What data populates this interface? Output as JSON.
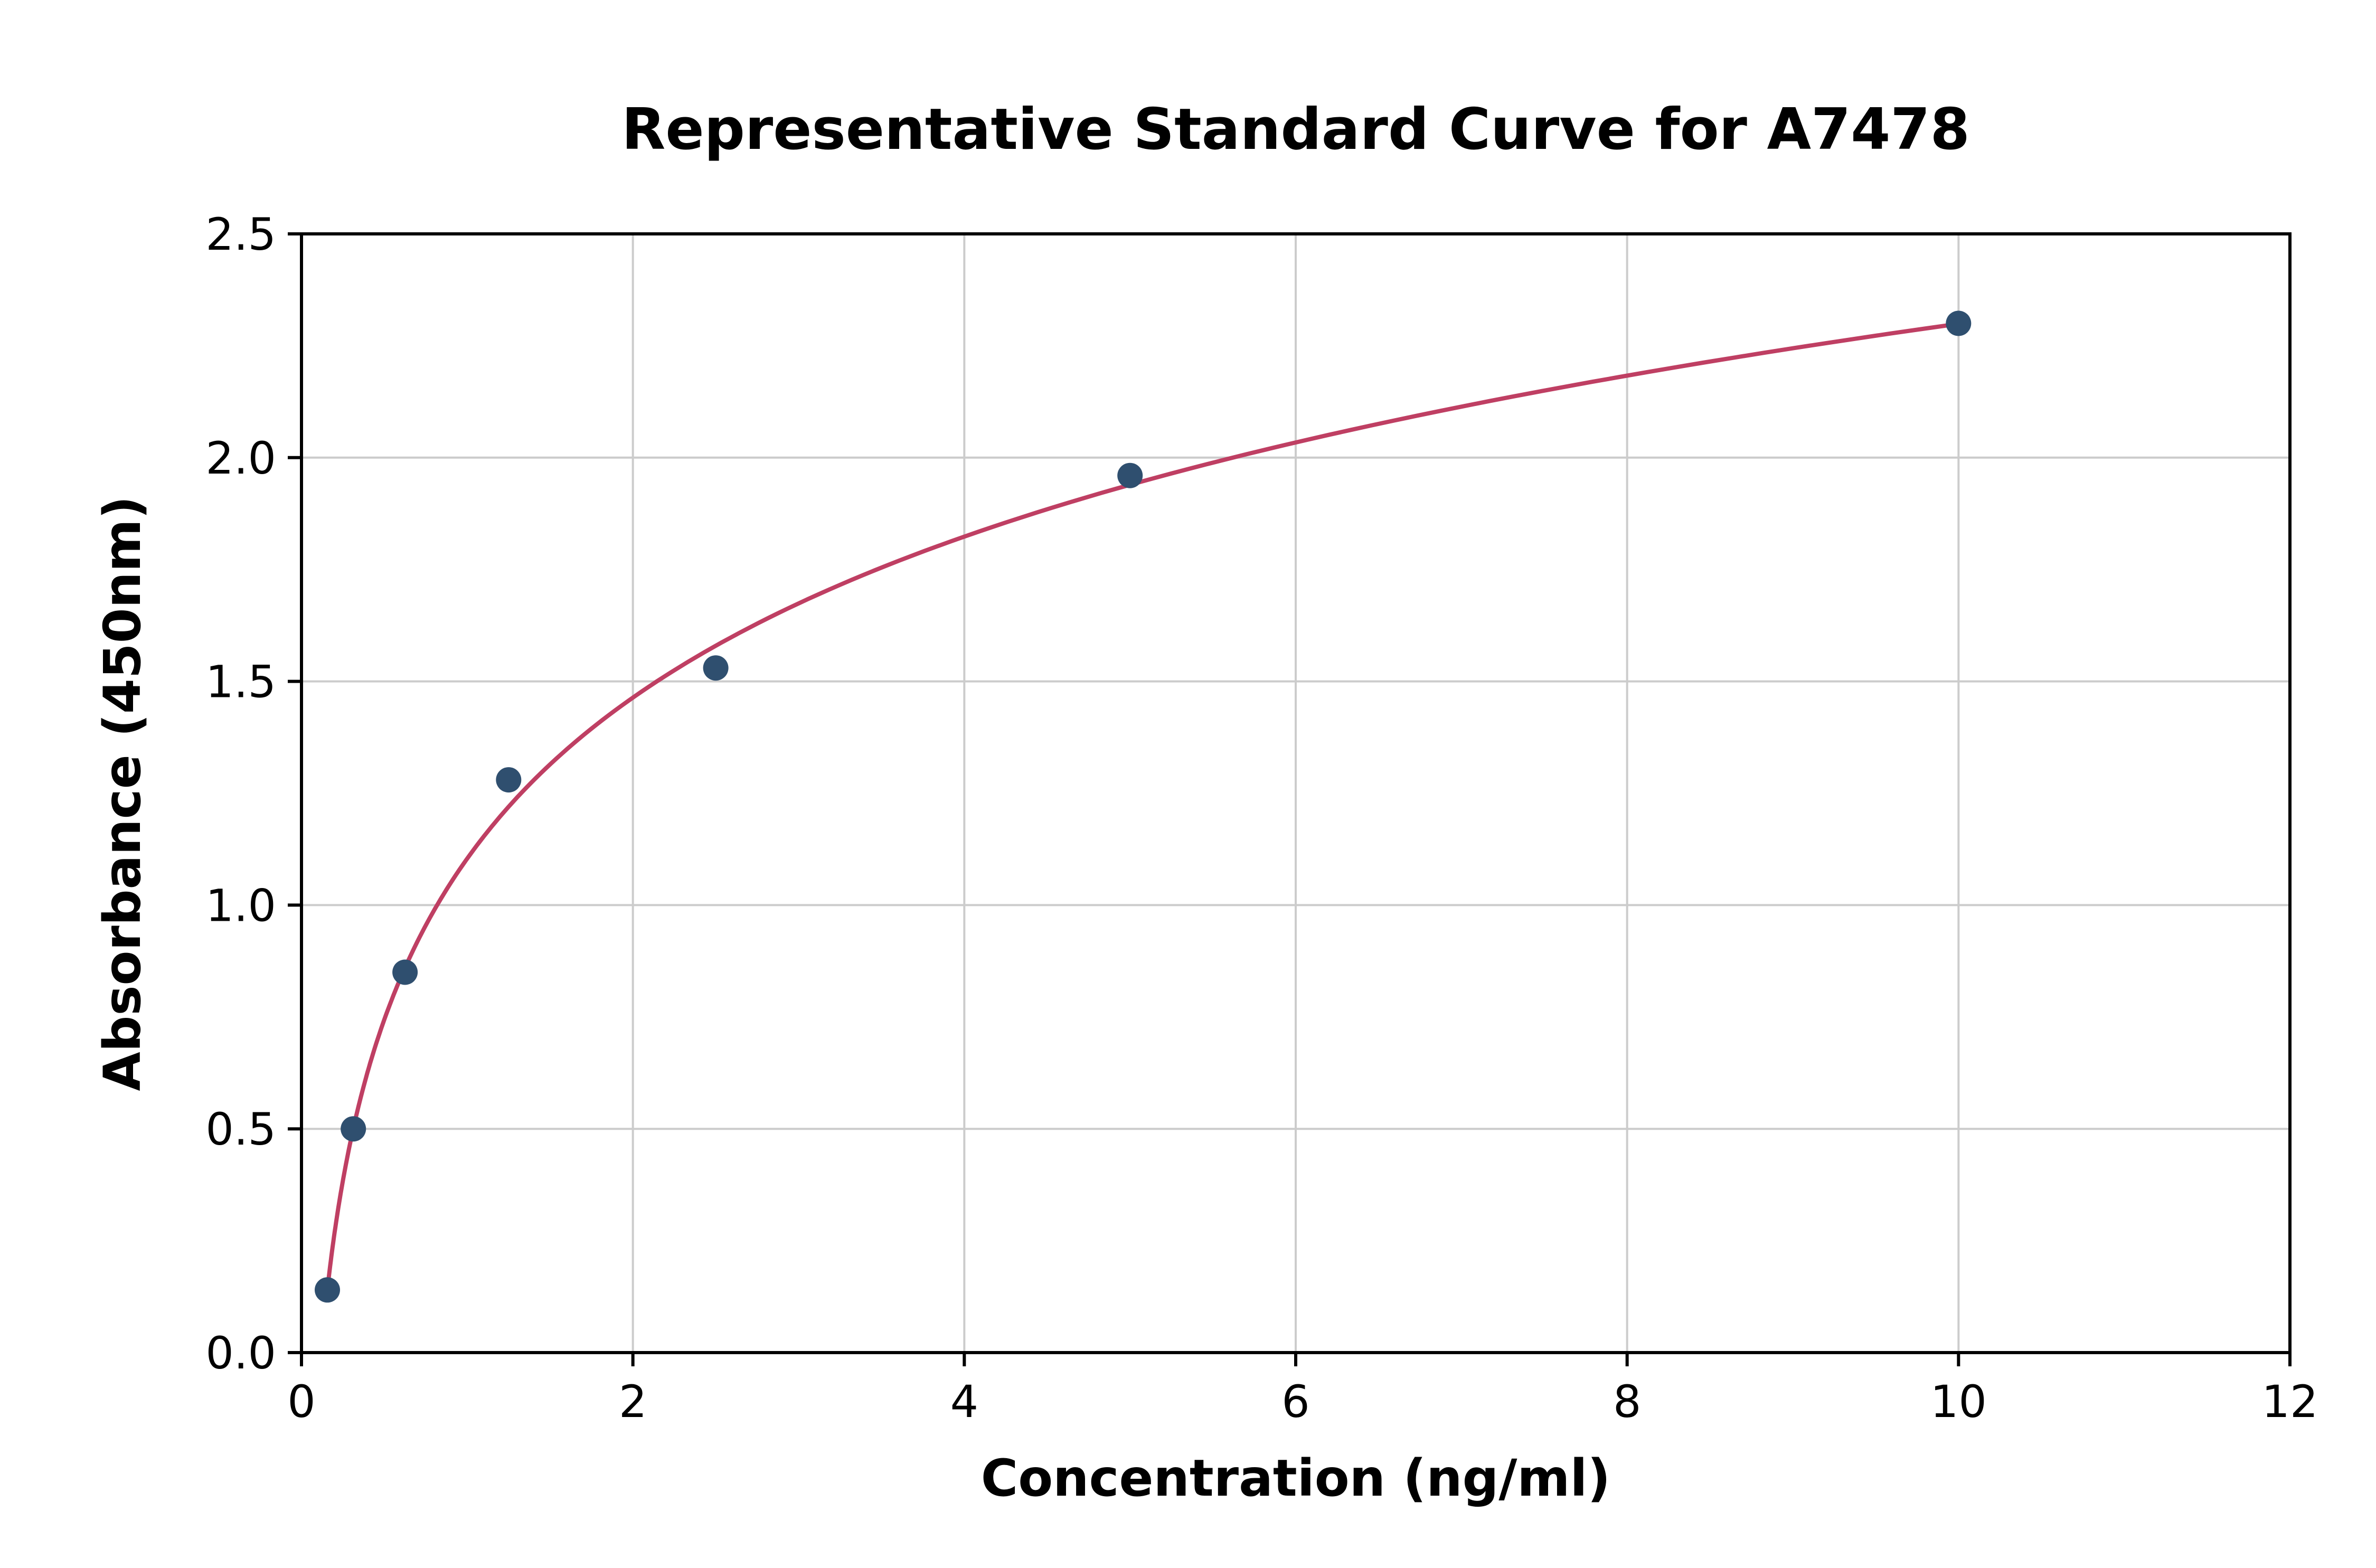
{
  "chart_data": {
    "type": "scatter",
    "title": "Representative Standard Curve for A7478",
    "xlabel": "Concentration (ng/ml)",
    "ylabel": "Absorbance (450nm)",
    "points": {
      "x": [
        0.156,
        0.313,
        0.625,
        1.25,
        2.5,
        5,
        10
      ],
      "y": [
        0.14,
        0.5,
        0.85,
        1.28,
        1.53,
        1.96,
        2.3
      ]
    },
    "curve_fit": {
      "model": "y = a*ln(x) + b",
      "a": 0.519,
      "b": 1.104,
      "x_start": 0.156,
      "x_end": 10
    },
    "xlim": [
      0,
      12
    ],
    "ylim": [
      0,
      2.5
    ],
    "xticks": [
      0,
      2,
      4,
      6,
      8,
      10,
      12
    ],
    "yticks": [
      0,
      0.5,
      1.0,
      1.5,
      2.0,
      2.5
    ],
    "xtick_labels": [
      "0",
      "2",
      "4",
      "6",
      "8",
      "10",
      "12"
    ],
    "ytick_labels": [
      "0.0",
      "0.5",
      "1.0",
      "1.5",
      "2.0",
      "2.5"
    ],
    "grid": true,
    "legend": "none",
    "colors": {
      "point": "#2f4f6f",
      "curve": "#bf3f63",
      "grid": "#cccccc",
      "axis": "#000000",
      "background": "#ffffff"
    }
  }
}
